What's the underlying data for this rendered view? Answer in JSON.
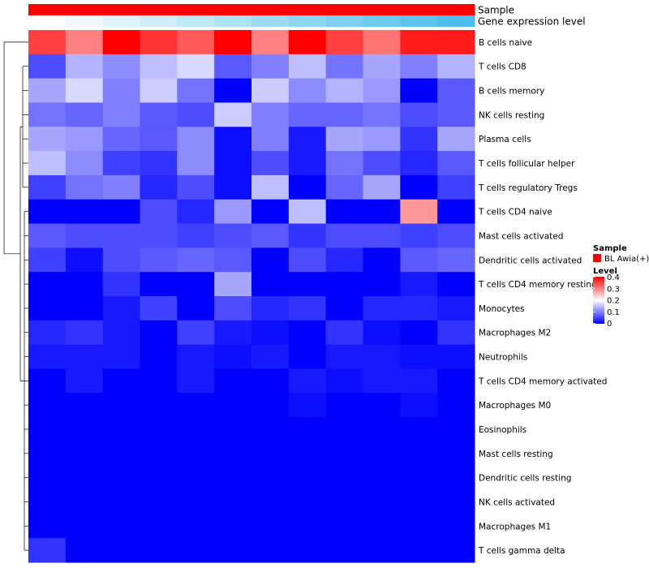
{
  "chart_data": {
    "type": "heatmap",
    "title": "",
    "rows": [
      "B cells naive",
      "T cells CD8",
      "B cells memory",
      "NK cells resting",
      "Plasma cells",
      "T cells follicular helper",
      "T cells regulatory  Tregs",
      "T cells CD4 naive",
      "Mast cells activated",
      "Dendritic cells activated",
      "T cells CD4 memory resting",
      "Monocytes",
      "Macrophages M2",
      "Neutrophils",
      "T cells CD4 memory activated",
      "Macrophages M0",
      "Eosinophils",
      "Mast cells resting",
      "Dendritic cells resting",
      "NK cells activated",
      "Macrophages M1",
      "T cells gamma delta"
    ],
    "n_columns": 12,
    "values": [
      [
        0.35,
        0.3,
        0.4,
        0.36,
        0.33,
        0.4,
        0.3,
        0.4,
        0.35,
        0.31,
        0.38,
        0.38
      ],
      [
        0.06,
        0.14,
        0.11,
        0.15,
        0.17,
        0.07,
        0.1,
        0.15,
        0.09,
        0.13,
        0.1,
        0.14
      ],
      [
        0.13,
        0.17,
        0.1,
        0.16,
        0.09,
        0.0,
        0.16,
        0.11,
        0.14,
        0.12,
        0.0,
        0.07
      ],
      [
        0.09,
        0.08,
        0.1,
        0.07,
        0.06,
        0.16,
        0.1,
        0.08,
        0.08,
        0.09,
        0.06,
        0.07
      ],
      [
        0.13,
        0.12,
        0.08,
        0.07,
        0.11,
        0.01,
        0.1,
        0.02,
        0.13,
        0.12,
        0.04,
        0.13
      ],
      [
        0.15,
        0.11,
        0.05,
        0.04,
        0.11,
        0.01,
        0.06,
        0.02,
        0.09,
        0.06,
        0.03,
        0.07
      ],
      [
        0.05,
        0.09,
        0.1,
        0.03,
        0.06,
        0.01,
        0.15,
        0.0,
        0.08,
        0.13,
        0.0,
        0.05
      ],
      [
        0.0,
        0.0,
        0.0,
        0.06,
        0.03,
        0.12,
        0.0,
        0.15,
        0.0,
        0.0,
        0.28,
        0.0
      ],
      [
        0.07,
        0.06,
        0.06,
        0.06,
        0.05,
        0.06,
        0.07,
        0.04,
        0.06,
        0.06,
        0.05,
        0.06
      ],
      [
        0.05,
        0.01,
        0.06,
        0.07,
        0.08,
        0.07,
        0.0,
        0.06,
        0.03,
        0.0,
        0.07,
        0.08
      ],
      [
        0.0,
        0.0,
        0.04,
        0.0,
        0.0,
        0.13,
        0.0,
        0.0,
        0.0,
        0.0,
        0.02,
        0.0
      ],
      [
        0.0,
        0.0,
        0.02,
        0.05,
        0.0,
        0.06,
        0.03,
        0.04,
        0.0,
        0.03,
        0.03,
        0.02
      ],
      [
        0.03,
        0.04,
        0.02,
        0.0,
        0.05,
        0.02,
        0.01,
        0.0,
        0.04,
        0.01,
        0.0,
        0.04
      ],
      [
        0.02,
        0.02,
        0.02,
        0.0,
        0.02,
        0.01,
        0.02,
        0.0,
        0.02,
        0.02,
        0.01,
        0.01
      ],
      [
        0.0,
        0.02,
        0.0,
        0.0,
        0.02,
        0.0,
        0.0,
        0.02,
        0.01,
        0.02,
        0.02,
        0.0
      ],
      [
        0.0,
        0.0,
        0.0,
        0.0,
        0.0,
        0.0,
        0.0,
        0.01,
        0.0,
        0.0,
        0.01,
        0.0
      ],
      [
        0.0,
        0.0,
        0.0,
        0.0,
        0.0,
        0.0,
        0.0,
        0.0,
        0.0,
        0.0,
        0.0,
        0.0
      ],
      [
        0.0,
        0.0,
        0.0,
        0.0,
        0.0,
        0.0,
        0.0,
        0.0,
        0.0,
        0.0,
        0.0,
        0.0
      ],
      [
        0.0,
        0.0,
        0.0,
        0.0,
        0.0,
        0.0,
        0.0,
        0.0,
        0.0,
        0.0,
        0.0,
        0.0
      ],
      [
        0.0,
        0.0,
        0.0,
        0.0,
        0.0,
        0.0,
        0.0,
        0.0,
        0.0,
        0.0,
        0.0,
        0.0
      ],
      [
        0.0,
        0.0,
        0.0,
        0.0,
        0.0,
        0.0,
        0.0,
        0.0,
        0.0,
        0.0,
        0.0,
        0.0
      ],
      [
        0.04,
        0.0,
        0.0,
        0.0,
        0.0,
        0.0,
        0.0,
        0.0,
        0.0,
        0.0,
        0.0,
        0.0
      ]
    ],
    "value_range": [
      0,
      0.4
    ],
    "color_scale": {
      "low": "#0000ff",
      "mid": "#ffffff",
      "high": "#ff0000",
      "midpoint": 0.2
    },
    "column_annotations": [
      {
        "label": "Sample",
        "type": "constant",
        "color": "#ff0000"
      },
      {
        "label": "Gene expression level",
        "type": "gradient",
        "values": [
          0.0,
          0.09,
          0.18,
          0.27,
          0.36,
          0.45,
          0.55,
          0.64,
          0.73,
          0.82,
          0.91,
          1.0
        ],
        "low_color": "#ffffff",
        "high_color": "#4dbeee"
      }
    ],
    "legend": {
      "position": "right",
      "sample_title": "Sample",
      "sample_entry": "BL Awia(+)",
      "sample_color": "#ff0000",
      "level_title": "Level",
      "level_ticks": [
        0.4,
        0.3,
        0.2,
        0.1,
        0
      ]
    },
    "row_dendrogram": true
  }
}
